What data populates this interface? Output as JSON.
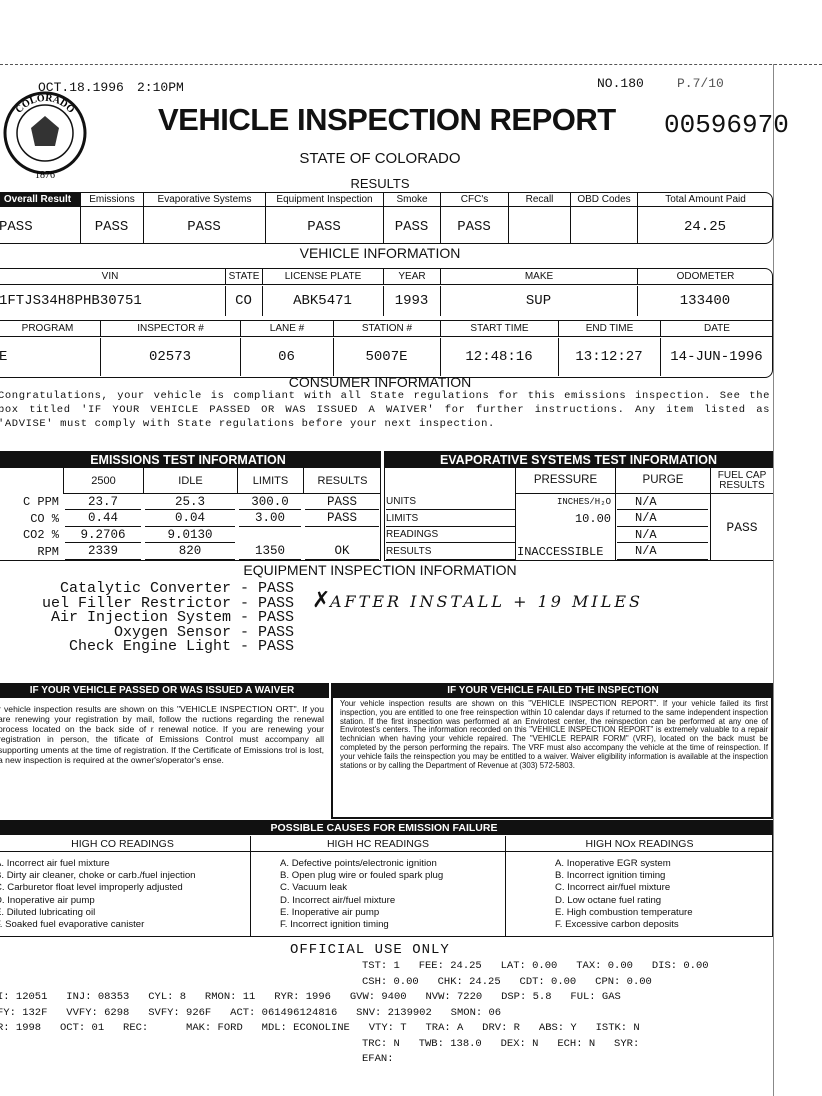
{
  "fax_header": {
    "date": "OCT.18.1996",
    "time": "2:10PM",
    "number": "NO.180",
    "page": "P.7/10"
  },
  "seal": {
    "text": "COLORADO",
    "year": "1876"
  },
  "header": {
    "title": "VEHICLE INSPECTION REPORT",
    "report_number": "00596970",
    "subtitle": "STATE OF COLORADO"
  },
  "results": {
    "title": "RESULTS",
    "columns": [
      {
        "label": "Overall Result",
        "value": "PASS"
      },
      {
        "label": "Emissions",
        "value": "PASS"
      },
      {
        "label": "Evaporative Systems",
        "value": "PASS"
      },
      {
        "label": "Equipment Inspection",
        "value": "PASS"
      },
      {
        "label": "Smoke",
        "value": "PASS"
      },
      {
        "label": "CFC's",
        "value": "PASS"
      },
      {
        "label": "Recall"
      },
      {
        "label": "OBD Codes"
      },
      {
        "label": "Total Amount Paid",
        "value": "24.25"
      }
    ]
  },
  "vehicle_information": {
    "title": "VEHICLE INFORMATION",
    "rows": [
      [
        {
          "label": "VIN",
          "value": "1FTJS34H8PHB30751"
        },
        {
          "label": "STATE",
          "value": "CO"
        },
        {
          "label": "LICENSE PLATE",
          "value": "ABK5471"
        },
        {
          "label": "YEAR",
          "value": "1993"
        },
        {
          "label": "MAKE",
          "value": "SUP"
        },
        {
          "label": "ODOMETER",
          "value": "133400"
        }
      ],
      [
        {
          "label": "PROGRAM",
          "value": "E"
        },
        {
          "label": "INSPECTOR #",
          "value": "02573"
        },
        {
          "label": "LANE #",
          "value": "06"
        },
        {
          "label": "STATION #",
          "value": "5007E"
        },
        {
          "label": "START TIME",
          "value": "12:48:16"
        },
        {
          "label": "END TIME",
          "value": "13:12:27"
        },
        {
          "label": "DATE",
          "value": "14-JUN-1996"
        }
      ]
    ]
  },
  "consumer_information": {
    "title": "CONSUMER INFORMATION",
    "text": "Congratulations, your vehicle is compliant with all State regulations for this emissions inspection. See the box titled 'IF YOUR VEHICLE PASSED OR WAS ISSUED A WAIVER' for further instructions. Any item listed as 'ADVISE' must comply with State regulations before your next inspection."
  },
  "emissions_test": {
    "title": "EMISSIONS TEST INFORMATION",
    "columns": [
      "2500",
      "IDLE",
      "LIMITS",
      "RESULTS"
    ],
    "rows": [
      {
        "label": "C PPM",
        "values": [
          "23.7",
          "25.3",
          "300.0",
          "PASS"
        ]
      },
      {
        "label": "CO %",
        "values": [
          "0.44",
          "0.04",
          "3.00",
          "PASS"
        ]
      },
      {
        "label": "CO2 %",
        "values": [
          "9.2706",
          "9.0130"
        ]
      },
      {
        "label": "RPM",
        "values": [
          "2339",
          "820",
          "1350",
          "OK"
        ]
      }
    ]
  },
  "evaporative_test": {
    "title": "EVAPORATIVE SYSTEMS TEST INFORMATION",
    "columns": [
      "PRESSURE",
      "PURGE",
      "FUEL CAP RESULTS"
    ],
    "rows": [
      {
        "label": "UNITS",
        "pressure": "INCHES/H₂O",
        "purge": "N/A"
      },
      {
        "label": "LIMITS",
        "pressure": "10.00",
        "purge": "N/A"
      },
      {
        "label": "READINGS",
        "purge": "N/A"
      },
      {
        "label": "RESULTS",
        "pressure": "INACCESSIBLE",
        "purge": "N/A"
      }
    ],
    "fuel_cap_result": "PASS"
  },
  "equipment_inspection": {
    "title": "EQUIPMENT INSPECTION INFORMATION",
    "items": [
      "Catalytic Converter - PASS",
      "uel Filler Restrictor - PASS",
      "Air Injection System - PASS",
      "Oxygen Sensor - PASS",
      "Check Engine Light - PASS"
    ],
    "handwritten_note": "AFTER INSTALL + 19 MILES"
  },
  "waiver_passed": {
    "title": "IF YOUR VEHICLE PASSED OR WAS ISSUED A WAIVER",
    "text": "r vehicle inspection results are shown on this \"VEHICLE INSPECTION ORT\". If you are renewing your registration by mail, follow the ructions regarding the renewal process located on the back side of r renewal notice. If you are renewing your registration in person, the tificate of Emissions Control must accompany all supporting uments at the time of registration. If the Certificate of Emissions trol is lost, a new inspection is required at the owner's/operator's ense."
  },
  "waiver_failed": {
    "title": "IF YOUR VEHICLE FAILED THE INSPECTION",
    "text": "Your vehicle inspection results are shown on this \"VEHICLE INSPECTION REPORT\". If your vehicle failed its first inspection, you are entitled to one free reinspection within 10 calendar days if returned to the same independent inspection station. If the first inspection was performed at an Envirotest center, the reinspection can be performed at any one of Envirotest's centers. The information recorded on this \"VEHICLE INSPECTION REPORT\" is extremely valuable to a repair technician when having your vehicle repaired. The \"VEHICLE REPAIR FORM\" (VRF), located on the back must be completed by the person performing the repairs. The VRF must also accompany the vehicle at the time of reinspection. If your vehicle fails the reinspection you may be entitled to a waiver. Waiver eligibility information is available at the inspection stations or by calling the Department of Revenue at (303) 572-5803."
  },
  "possible_causes": {
    "title": "POSSIBLE CAUSES FOR EMISSION FAILURE",
    "columns": [
      {
        "heading": "HIGH CO READINGS",
        "items": [
          "A. Incorrect air fuel mixture",
          "B. Dirty air cleaner, choke or carb./fuel injection",
          "C. Carburetor float level improperly adjusted",
          "D. Inoperative air pump",
          "E. Diluted lubricating oil",
          "F. Soaked fuel evaporative canister"
        ]
      },
      {
        "heading": "HIGH HC READINGS",
        "items": [
          "A. Defective points/electronic ignition",
          "B. Open plug wire or fouled spark plug",
          "C. Vacuum leak",
          "D. Incorrect air/fuel mixture",
          "E. Inoperative air pump",
          "F. Incorrect ignition timing"
        ]
      },
      {
        "heading": "HIGH NOx READINGS",
        "items": [
          "A. Inoperative EGR system",
          "B. Incorrect ignition timing",
          "C. Incorrect air/fuel mixture",
          "D. Low octane fuel rating",
          "E. High combustion temperature",
          "F. Excessive carbon deposits"
        ]
      }
    ]
  },
  "official_use": {
    "title": "OFFICIAL USE ONLY",
    "lines": [
      "TST: 1   FEE: 24.25   LAT: 0.00   TAX: 0.00   DIS: 0.00",
      "CSH: 0.00   CHK: 24.25   CDT: 0.00   CPN: 0.00",
      "I: 12051   INJ: 08353   CYL: 8   RMON: 11   RYR: 1996   GVW: 9400   NVW: 7220   DSP: 5.8   FUL: GAS",
      "FY: 132F   VVFY: 6298   SVFY: 926F   ACT: 061496124816   SNV: 2139902   SMON: 06",
      "R: 1998   OCT: 01   REC:      MAK: FORD   MDL: ECONOLINE   VTY: T   TRA: A   DRV: R   ABS: Y   ISTK: N",
      "TRC: N   TWB: 138.0   DEX: N   ECH: N   SYR:",
      "EFAN:"
    ]
  }
}
